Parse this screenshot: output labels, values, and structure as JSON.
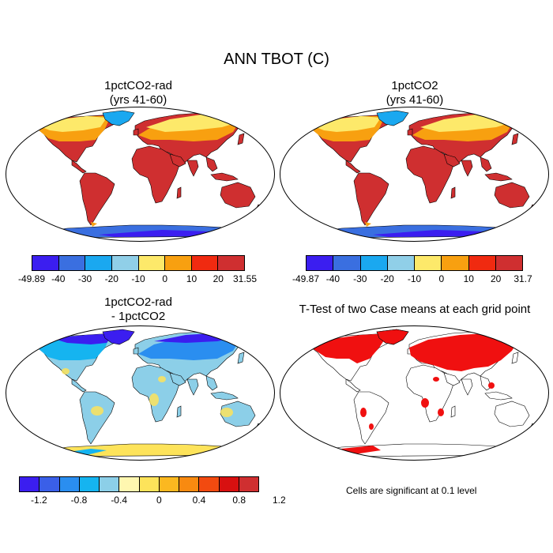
{
  "title": "ANN TBOT (C)",
  "panels": [
    {
      "id": "p1",
      "title_line1": "1pctCO2-rad",
      "title_line2": "(yrs 41-60)",
      "palette": "temp"
    },
    {
      "id": "p2",
      "title_line1": "1pctCO2",
      "title_line2": "(yrs 41-60)",
      "palette": "temp"
    },
    {
      "id": "p3",
      "title_line1": "1pctCO2-rad",
      "title_line2": "- 1pctCO2",
      "palette": "diff"
    },
    {
      "id": "p4",
      "title_line1": "T-Test of two Case means at each grid point",
      "title_line2": "",
      "palette": "ttest"
    }
  ],
  "colorbars": {
    "cb1": {
      "labels": [
        "-49.89",
        "-40",
        "-30",
        "-20",
        "-10",
        "0",
        "10",
        "20",
        "31.55"
      ],
      "colors": [
        "#3b1ef0",
        "#3a6fe0",
        "#1aa8f0",
        "#90cfe8",
        "#fde96a",
        "#f8a010",
        "#f02a10",
        "#cf2f30"
      ]
    },
    "cb2": {
      "labels": [
        "-49.87",
        "-40",
        "-30",
        "-20",
        "-10",
        "0",
        "10",
        "20",
        "31.7"
      ],
      "colors": [
        "#3b1ef0",
        "#3a6fe0",
        "#1aa8f0",
        "#90cfe8",
        "#fde96a",
        "#f8a010",
        "#f02a10",
        "#cf2f30"
      ]
    },
    "cb3": {
      "labels": [
        "-1.2",
        "-0.8",
        "-0.4",
        "0",
        "0.4",
        "0.8",
        "1.2"
      ],
      "colors": [
        "#3b1ef0",
        "#3a5fe8",
        "#2a8ef0",
        "#15b4f0",
        "#8ccfe8",
        "#fff7b0",
        "#fde35a",
        "#fbb820",
        "#f88a10",
        "#f24a10",
        "#d81010",
        "#cf2f30"
      ]
    }
  },
  "note": "Cells are significant at 0.1 level"
}
